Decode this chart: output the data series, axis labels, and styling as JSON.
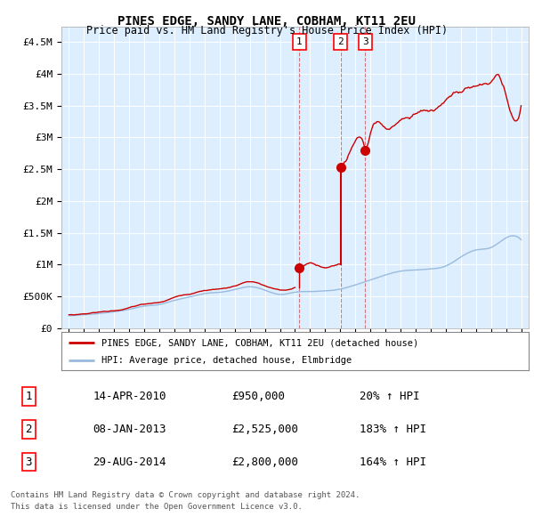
{
  "title": "PINES EDGE, SANDY LANE, COBHAM, KT11 2EU",
  "subtitle": "Price paid vs. HM Land Registry's House Price Index (HPI)",
  "legend_line1": "PINES EDGE, SANDY LANE, COBHAM, KT11 2EU (detached house)",
  "legend_line2": "HPI: Average price, detached house, Elmbridge",
  "sale_color": "#cc0000",
  "hpi_color": "#99bbdd",
  "background_color": "#ddeeff",
  "plot_bg_color": "#ddeeff",
  "ylim_max": 4750000,
  "yticks": [
    0,
    500000,
    1000000,
    1500000,
    2000000,
    2500000,
    3000000,
    3500000,
    4000000,
    4500000
  ],
  "ytick_labels": [
    "£0",
    "£500K",
    "£1M",
    "£1.5M",
    "£2M",
    "£2.5M",
    "£3M",
    "£3.5M",
    "£4M",
    "£4.5M"
  ],
  "xlim_start": 1994.5,
  "xlim_end": 2025.5,
  "sale_dates": [
    2010.28,
    2013.02,
    2014.66
  ],
  "sale_prices": [
    950000,
    2525000,
    2800000
  ],
  "sale_labels": [
    "1",
    "2",
    "3"
  ],
  "footer_line1": "Contains HM Land Registry data © Crown copyright and database right 2024.",
  "footer_line2": "This data is licensed under the Open Government Licence v3.0.",
  "table": [
    {
      "num": "1",
      "date": "14-APR-2010",
      "price": "£950,000",
      "pct": "20% ↑ HPI"
    },
    {
      "num": "2",
      "date": "08-JAN-2013",
      "price": "£2,525,000",
      "pct": "183% ↑ HPI"
    },
    {
      "num": "3",
      "date": "29-AUG-2014",
      "price": "£2,800,000",
      "pct": "164% ↑ HPI"
    }
  ]
}
